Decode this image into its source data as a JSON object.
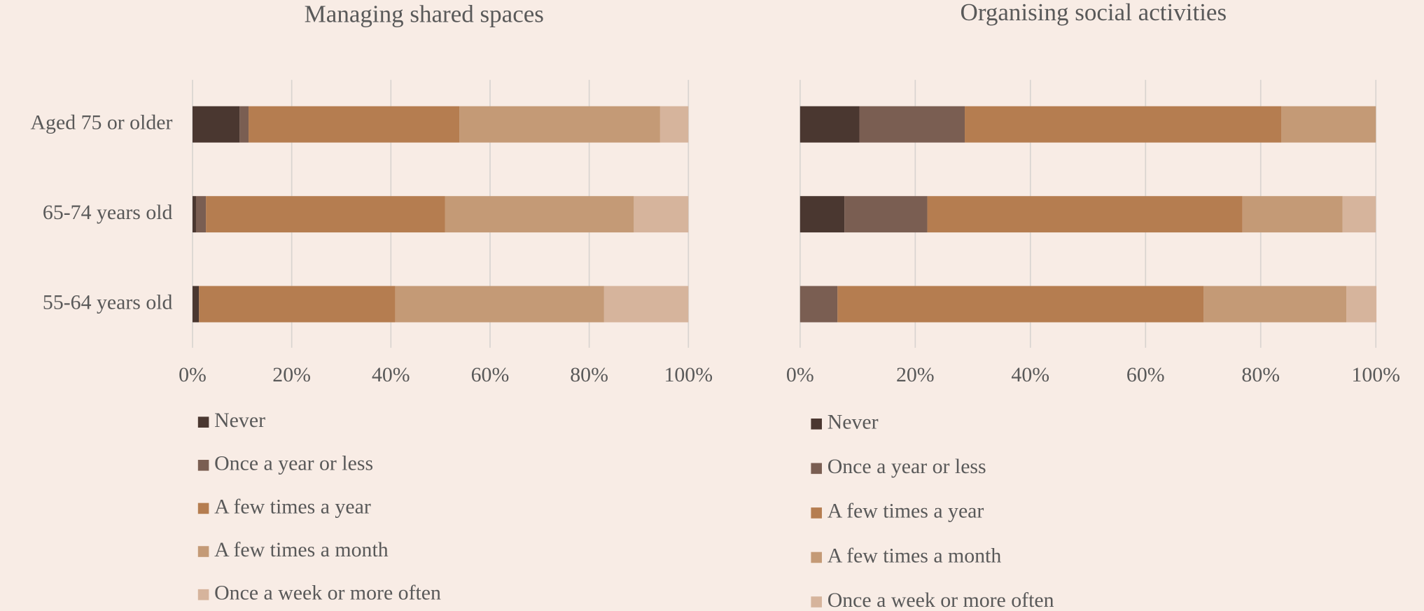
{
  "chart_data": [
    {
      "type": "bar",
      "orientation": "horizontal",
      "stacked": true,
      "title": "Managing shared spaces",
      "categories": [
        "Aged 75 or older",
        "65-74 years old",
        "55-64 years old"
      ],
      "series": [
        {
          "name": "Never",
          "color": "#4a3730",
          "values": [
            9.5,
            0.7,
            1.3
          ]
        },
        {
          "name": "Once a year or less",
          "color": "#7a5e52",
          "values": [
            1.8,
            2.0,
            0
          ]
        },
        {
          "name": "A few times a year",
          "color": "#b57d50",
          "values": [
            42.5,
            48.2,
            39.6
          ]
        },
        {
          "name": "A few times a month",
          "color": "#c49a76",
          "values": [
            40.5,
            38.1,
            42.1
          ]
        },
        {
          "name": "Once a week or more often",
          "color": "#d6b49c",
          "values": [
            5.7,
            11.0,
            17.0
          ]
        }
      ],
      "xlim": [
        0,
        100
      ],
      "xticks": [
        {
          "value": 0,
          "label": "0%"
        },
        {
          "value": 20,
          "label": "20%"
        },
        {
          "value": 40,
          "label": "40%"
        },
        {
          "value": 60,
          "label": "60%"
        },
        {
          "value": 80,
          "label": "80%"
        },
        {
          "value": 100,
          "label": "100%"
        }
      ],
      "grid": true,
      "legend": "bottom"
    },
    {
      "type": "bar",
      "orientation": "horizontal",
      "stacked": true,
      "title": "Organising social activities",
      "series": [
        {
          "name": "Never",
          "color": "#4a3730",
          "values": [
            10.3,
            7.7,
            0
          ]
        },
        {
          "name": "Once a year or less",
          "color": "#7a5e52",
          "values": [
            18.3,
            14.4,
            6.5
          ]
        },
        {
          "name": "A few times a year",
          "color": "#b57d50",
          "values": [
            55.0,
            54.7,
            63.6
          ]
        },
        {
          "name": "A few times a month",
          "color": "#c49a76",
          "values": [
            16.4,
            17.4,
            24.8
          ]
        },
        {
          "name": "Once a week or more often",
          "color": "#d6b49c",
          "values": [
            0,
            5.8,
            5.2
          ]
        }
      ],
      "xlim": [
        0,
        100
      ],
      "xticks": [
        {
          "value": 0,
          "label": "0%"
        },
        {
          "value": 20,
          "label": "20%"
        },
        {
          "value": 40,
          "label": "40%"
        },
        {
          "value": 60,
          "label": "60%"
        },
        {
          "value": 80,
          "label": "80%"
        },
        {
          "value": 100,
          "label": "100%"
        }
      ],
      "grid": true,
      "legend": "bottom"
    }
  ]
}
